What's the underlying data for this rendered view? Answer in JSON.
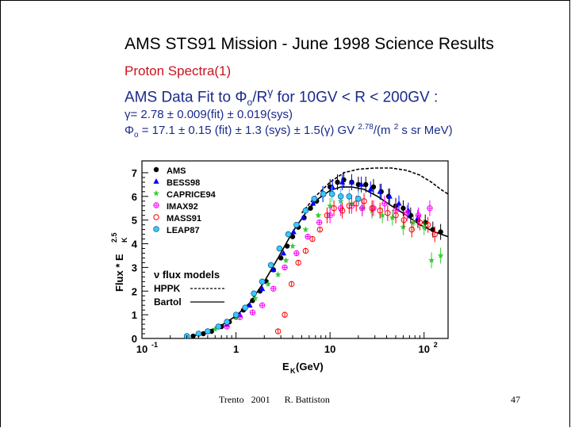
{
  "slide": {
    "title": "AMS  STS91 Mission - June 1998  Science Results",
    "subtitle": "Proton Spectra(1)",
    "fit_line_prefix": "AMS Data Fit to Φ",
    "fit_line_mid": "/R",
    "fit_line_sup": "γ",
    "fit_line_suffix": " for 10GV < R < 200GV :",
    "fit_line_sub": "o",
    "gamma_line": "γ= 2.78 ± 0.009(fit) ± 0.019(sys)",
    "phi_line_prefix": "Φ",
    "phi_line_sub": "o",
    "phi_line_body": " = 17.1 ± 0.15 (fit) ± 1.3 (sys) ± 1.5(γ) GV ",
    "phi_line_sup": "2.78",
    "phi_line_unit": "/(m ",
    "phi_line_unit_sup": "2",
    "phi_line_unit_end": " s sr MeV)",
    "footer_left": "Trento   2001      R. Battiston",
    "footer_right": "47"
  },
  "chart_data": {
    "type": "scatter",
    "title": "",
    "xlabel": "E",
    "xlabel_sub": "K",
    "xlabel_unit": " (GeV)",
    "ylabel": "Flux * E",
    "ylabel_sub": "K",
    "ylabel_sup": "2.5",
    "x_scale": "log",
    "xlim": [
      0.1,
      180
    ],
    "ylim": [
      0,
      7.5
    ],
    "x_ticks": [
      {
        "value": 0.1,
        "label": "10",
        "sup": "-1"
      },
      {
        "value": 1,
        "label": "1",
        "sup": ""
      },
      {
        "value": 10,
        "label": "10",
        "sup": ""
      },
      {
        "value": 100,
        "label": "10",
        "sup": "2"
      }
    ],
    "y_ticks": [
      0,
      1,
      2,
      3,
      4,
      5,
      6,
      7
    ],
    "y_tick_labels": [
      "0",
      "1",
      "2",
      "3",
      "4",
      "5",
      "6",
      "7"
    ],
    "legend_position": "top-left",
    "series": [
      {
        "name": "AMS",
        "marker": "circle-filled",
        "color": "#000000",
        "points": [
          [
            0.35,
            0.1
          ],
          [
            0.45,
            0.2
          ],
          [
            0.55,
            0.3
          ],
          [
            0.7,
            0.5
          ],
          [
            0.85,
            0.7
          ],
          [
            1.0,
            0.9
          ],
          [
            1.2,
            1.2
          ],
          [
            1.5,
            1.6
          ],
          [
            1.8,
            2.0
          ],
          [
            2.1,
            2.4
          ],
          [
            2.5,
            2.9
          ],
          [
            3.0,
            3.4
          ],
          [
            3.5,
            3.9
          ],
          [
            4.0,
            4.3
          ],
          [
            4.6,
            4.7
          ],
          [
            5.3,
            5.1
          ],
          [
            6.2,
            5.5
          ],
          [
            7.2,
            5.8
          ],
          [
            8.4,
            6.1
          ],
          [
            10,
            6.4
          ],
          [
            12,
            6.6
          ],
          [
            14,
            6.7
          ],
          [
            17,
            6.6
          ],
          [
            20,
            6.5
          ],
          [
            24,
            6.5
          ],
          [
            29,
            6.4
          ],
          [
            35,
            6.2
          ],
          [
            42,
            6.0
          ],
          [
            50,
            5.6
          ],
          [
            60,
            5.5
          ],
          [
            72,
            5.2
          ],
          [
            86,
            5.0
          ],
          [
            103,
            4.9
          ],
          [
            124,
            4.6
          ],
          [
            150,
            4.5
          ]
        ]
      },
      {
        "name": "BESS98",
        "marker": "triangle-filled",
        "color": "#0000ff",
        "points": [
          [
            0.8,
            0.6
          ],
          [
            1.1,
            1.0
          ],
          [
            1.4,
            1.4
          ],
          [
            1.9,
            2.1
          ],
          [
            2.5,
            2.9
          ],
          [
            3.2,
            3.6
          ],
          [
            4.1,
            4.5
          ],
          [
            5.2,
            5.1
          ],
          [
            6.6,
            5.7
          ],
          [
            8.4,
            6.1
          ],
          [
            10.6,
            6.4
          ],
          [
            13.5,
            6.6
          ],
          [
            17,
            6.6
          ],
          [
            21.5,
            6.5
          ],
          [
            27,
            6.3
          ],
          [
            34,
            6.2
          ],
          [
            43,
            6.0
          ],
          [
            54,
            5.7
          ],
          [
            68,
            5.4
          ],
          [
            86,
            5.1
          ]
        ]
      },
      {
        "name": "CAPRICE94",
        "marker": "star",
        "color": "#33cc33",
        "points": [
          [
            0.6,
            0.4
          ],
          [
            1.0,
            0.9
          ],
          [
            1.6,
            1.7
          ],
          [
            2.2,
            2.3
          ],
          [
            2.8,
            2.7
          ],
          [
            3.4,
            3.3
          ],
          [
            4.0,
            3.9
          ],
          [
            5.5,
            4.6
          ],
          [
            7.5,
            5.2
          ],
          [
            10,
            5.6
          ],
          [
            13,
            5.8
          ],
          [
            17,
            5.7
          ],
          [
            22,
            5.5
          ],
          [
            28,
            5.4
          ],
          [
            36,
            5.2
          ],
          [
            46,
            5.1
          ],
          [
            60,
            4.7
          ],
          [
            77,
            4.9
          ],
          [
            100,
            4.7
          ],
          [
            120,
            3.3
          ],
          [
            150,
            3.5
          ]
        ]
      },
      {
        "name": "IMAX92",
        "marker": "circle-cross",
        "color": "#ff00ff",
        "points": [
          [
            0.5,
            0.3
          ],
          [
            0.8,
            0.5
          ],
          [
            1.1,
            0.9
          ],
          [
            1.5,
            1.1
          ],
          [
            1.9,
            1.4
          ],
          [
            2.5,
            2.1
          ],
          [
            3.3,
            3.0
          ],
          [
            4.4,
            3.6
          ],
          [
            5.8,
            4.3
          ],
          [
            7.7,
            4.9
          ],
          [
            10,
            5.2
          ],
          [
            13,
            5.5
          ],
          [
            17,
            5.6
          ],
          [
            22,
            5.5
          ],
          [
            29,
            5.5
          ],
          [
            38,
            5.7
          ],
          [
            50,
            5.4
          ],
          [
            66,
            5.3
          ],
          [
            87,
            5.2
          ],
          [
            115,
            5.5
          ]
        ]
      },
      {
        "name": "MASS91",
        "marker": "circle-open",
        "color": "#ff0000",
        "points": [
          [
            2.8,
            0.3
          ],
          [
            3.3,
            1.0
          ],
          [
            3.9,
            2.3
          ],
          [
            4.6,
            3.2
          ],
          [
            5.5,
            3.7
          ],
          [
            6.5,
            4.2
          ],
          [
            7.8,
            4.6
          ],
          [
            9.3,
            5.2
          ],
          [
            11,
            5.5
          ],
          [
            13.5,
            5.4
          ],
          [
            16,
            5.6
          ],
          [
            19,
            5.7
          ],
          [
            23,
            5.8
          ],
          [
            28,
            5.5
          ],
          [
            34,
            5.4
          ],
          [
            41,
            5.3
          ],
          [
            50,
            5.2
          ],
          [
            61,
            5.0
          ],
          [
            74,
            4.6
          ],
          [
            90,
            4.9
          ],
          [
            110,
            4.8
          ],
          [
            130,
            4.4
          ]
        ]
      },
      {
        "name": "LEAP87",
        "marker": "circle-filled-cyan",
        "color": "#33ccff",
        "points": [
          [
            0.3,
            0.1
          ],
          [
            0.4,
            0.2
          ],
          [
            0.5,
            0.3
          ],
          [
            0.65,
            0.5
          ],
          [
            0.8,
            0.7
          ],
          [
            1.0,
            1.0
          ],
          [
            1.25,
            1.3
          ],
          [
            1.55,
            1.9
          ],
          [
            1.9,
            2.4
          ],
          [
            2.35,
            3.1
          ],
          [
            2.9,
            3.8
          ],
          [
            3.6,
            4.4
          ],
          [
            4.4,
            4.8
          ],
          [
            5.5,
            5.4
          ],
          [
            6.8,
            5.9
          ],
          [
            8.5,
            6.1
          ],
          [
            10.5,
            6.1
          ],
          [
            13,
            6.0
          ],
          [
            16,
            6.0
          ],
          [
            20,
            5.9
          ]
        ]
      }
    ],
    "model_curves": [
      {
        "name": "HPPK",
        "style": "dashed",
        "color": "#000000",
        "points": [
          [
            5,
            5.3
          ],
          [
            7,
            6.0
          ],
          [
            10,
            6.6
          ],
          [
            14,
            7.0
          ],
          [
            20,
            7.15
          ],
          [
            30,
            7.2
          ],
          [
            45,
            7.2
          ],
          [
            65,
            7.1
          ],
          [
            90,
            6.9
          ],
          [
            120,
            6.6
          ],
          [
            150,
            6.3
          ],
          [
            180,
            6.1
          ]
        ]
      },
      {
        "name": "Bartol",
        "style": "solid",
        "color": "#000000",
        "points": [
          [
            0.35,
            0.1
          ],
          [
            0.5,
            0.3
          ],
          [
            0.7,
            0.55
          ],
          [
            1.0,
            0.95
          ],
          [
            1.4,
            1.5
          ],
          [
            2.0,
            2.4
          ],
          [
            2.8,
            3.4
          ],
          [
            4.0,
            4.5
          ],
          [
            5.5,
            5.3
          ],
          [
            7.5,
            5.9
          ],
          [
            10,
            6.25
          ],
          [
            13,
            6.4
          ],
          [
            17,
            6.4
          ],
          [
            23,
            6.3
          ],
          [
            32,
            6.0
          ],
          [
            45,
            5.6
          ],
          [
            65,
            5.2
          ],
          [
            90,
            4.8
          ],
          [
            130,
            4.5
          ],
          [
            180,
            4.3
          ]
        ]
      }
    ],
    "models_label": "ν flux models"
  }
}
